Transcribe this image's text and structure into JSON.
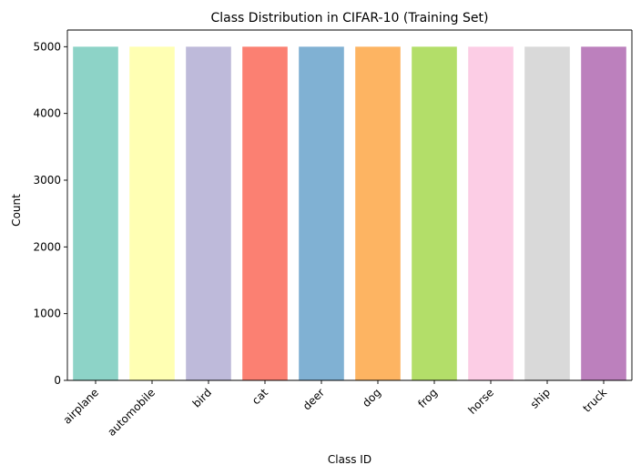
{
  "chart_data": {
    "type": "bar",
    "title": "Class Distribution in CIFAR-10 (Training Set)",
    "xlabel": "Class ID",
    "ylabel": "Count",
    "categories": [
      "airplane",
      "automobile",
      "bird",
      "cat",
      "deer",
      "dog",
      "frog",
      "horse",
      "ship",
      "truck"
    ],
    "values": [
      5000,
      5000,
      5000,
      5000,
      5000,
      5000,
      5000,
      5000,
      5000,
      5000
    ],
    "ylim": [
      0,
      5250
    ],
    "yticks": [
      0,
      1000,
      2000,
      3000,
      4000,
      5000
    ],
    "colors": [
      "#8dd3c7",
      "#ffffb3",
      "#bebada",
      "#fb8072",
      "#80b1d3",
      "#fdb462",
      "#b3de69",
      "#fccde5",
      "#d9d9d9",
      "#bc80bd"
    ],
    "grid": false,
    "legend": "none",
    "xtick_rotation": 45
  }
}
